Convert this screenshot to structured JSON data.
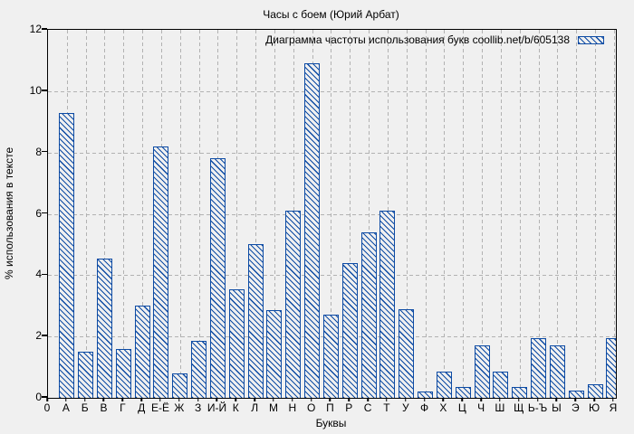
{
  "window": {
    "background_color": "#f0f0f0",
    "bar_color": "#0d4ba4",
    "grid_color": "#b2b2b2",
    "border_color": "#000000"
  },
  "chart_data": {
    "type": "bar",
    "title": "Часы с боем (Юрий Арбат)",
    "legend_label": "Диаграмма частоты использования букв coollib.net/b/605138",
    "legend_position": "top-right-inside",
    "legend_swatch": "blue-diagonal-hatch",
    "xlabel": "Буквы",
    "ylabel": "% использования в тексте",
    "origin_label": "0",
    "ylim": [
      0,
      12
    ],
    "yticks": [
      0,
      2,
      4,
      6,
      8,
      10,
      12
    ],
    "grid": true,
    "bar_fill": "diagonal-hatch",
    "categories": [
      "А",
      "Б",
      "В",
      "Г",
      "Д",
      "Е-Ё",
      "Ж",
      "З",
      "И-Й",
      "К",
      "Л",
      "М",
      "Н",
      "О",
      "П",
      "Р",
      "С",
      "Т",
      "У",
      "Ф",
      "Х",
      "Ц",
      "Ч",
      "Ш",
      "Щ",
      "Ь-Ъ",
      "Ы",
      "Э",
      "Ю",
      "Я"
    ],
    "values": [
      9.3,
      1.5,
      4.55,
      1.6,
      3.0,
      8.2,
      0.8,
      1.85,
      7.8,
      3.55,
      5.0,
      2.85,
      6.1,
      10.9,
      2.7,
      4.4,
      5.4,
      6.1,
      2.9,
      0.2,
      0.85,
      0.35,
      1.7,
      0.85,
      0.35,
      1.95,
      1.7,
      0.25,
      0.45,
      1.95
    ]
  }
}
